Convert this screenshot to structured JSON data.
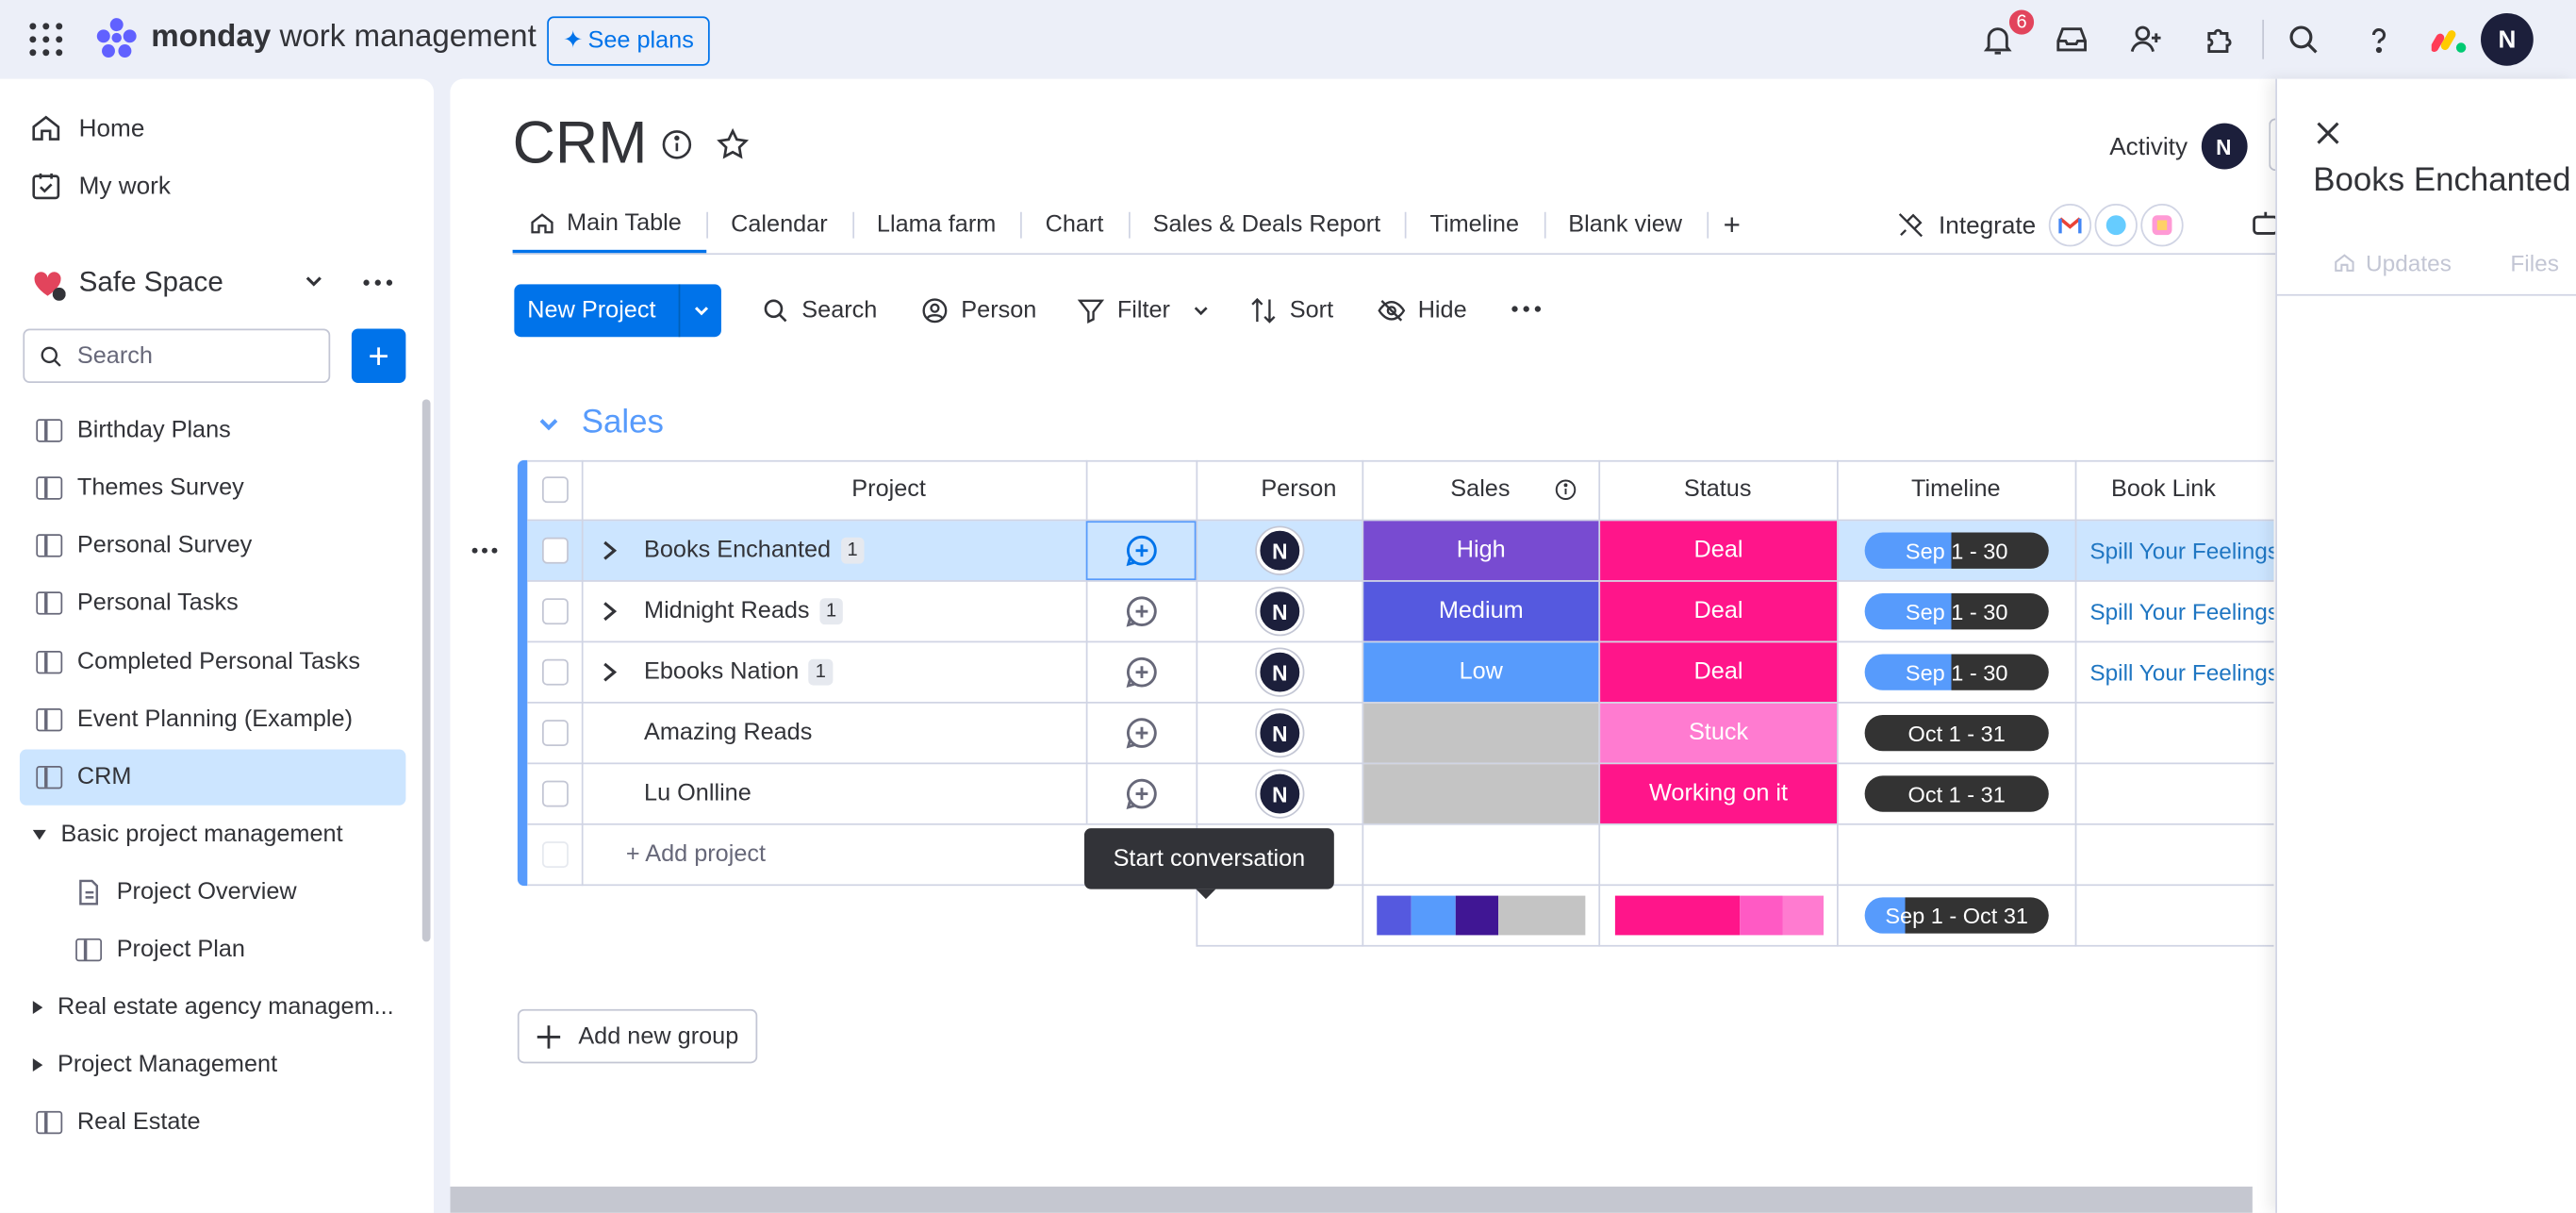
{
  "topbar": {
    "brand_bold": "monday",
    "brand_rest": " work management",
    "see_plans": "See plans",
    "notifications_count": "6",
    "avatar_initial": "N"
  },
  "sidebar": {
    "home": "Home",
    "my_work": "My work",
    "workspace": "Safe Space",
    "search_placeholder": "Search",
    "boards": [
      {
        "label": "Birthday Plans"
      },
      {
        "label": "Themes Survey"
      },
      {
        "label": "Personal Survey"
      },
      {
        "label": "Personal Tasks"
      },
      {
        "label": "Completed Personal Tasks"
      },
      {
        "label": "Event Planning (Example)"
      },
      {
        "label": "CRM"
      },
      {
        "label": "Basic project management"
      },
      {
        "label": "Project Overview"
      },
      {
        "label": "Project Plan"
      },
      {
        "label": "Real estate agency managem..."
      },
      {
        "label": "Project Management"
      },
      {
        "label": "Real Estate"
      }
    ]
  },
  "board": {
    "title": "CRM",
    "activity": "Activity",
    "activity_avatar": "N",
    "tabs": [
      "Main Table",
      "Calendar",
      "Llama farm",
      "Chart",
      "Sales & Deals Report",
      "Timeline",
      "Blank view"
    ],
    "tab_add": "+",
    "integrate": "Integrate",
    "new_project": "New Project",
    "toolbar": {
      "search": "Search",
      "person": "Person",
      "filter": "Filter",
      "sort": "Sort",
      "hide": "Hide"
    },
    "group_title": "Sales",
    "columns": {
      "project": "Project",
      "person": "Person",
      "sales": "Sales",
      "status": "Status",
      "timeline": "Timeline",
      "book_link": "Book Link"
    },
    "tooltip": "Start conversation",
    "rows": [
      {
        "name": "Books Enchanted",
        "count": "1",
        "person": "N",
        "sales": "High",
        "status": "Deal",
        "timeline": "Sep 1 - 30",
        "link": "Spill Your Feelings-"
      },
      {
        "name": "Midnight Reads",
        "count": "1",
        "person": "N",
        "sales": "Medium",
        "status": "Deal",
        "timeline": "Sep 1 - 30",
        "link": "Spill Your Feelings-"
      },
      {
        "name": "Ebooks Nation",
        "count": "1",
        "person": "N",
        "sales": "Low",
        "status": "Deal",
        "timeline": "Sep 1 - 30",
        "link": "Spill Your Feelings I"
      },
      {
        "name": "Amazing Reads",
        "count": "",
        "person": "N",
        "sales": "",
        "status": "Stuck",
        "timeline": "Oct 1 - 31",
        "link": ""
      },
      {
        "name": "Lu Onlline",
        "count": "",
        "person": "N",
        "sales": "",
        "status": "Working on it",
        "timeline": "Oct 1 - 31",
        "link": ""
      }
    ],
    "add_project": "+ Add project",
    "summary_timeline": "Sep 1 - Oct 31",
    "add_group": "Add new group"
  },
  "panel": {
    "title": "Books Enchanted",
    "tab_updates": "Updates",
    "tab_files": "Files"
  },
  "colors": {
    "accent": "#0073ea",
    "high": "#784bd1",
    "medium": "#5559df",
    "low": "#579bfc",
    "deal": "#ff158a",
    "stuck": "#ff7bd0",
    "empty": "#c4c4c4",
    "timeline_dark": "#333333"
  }
}
